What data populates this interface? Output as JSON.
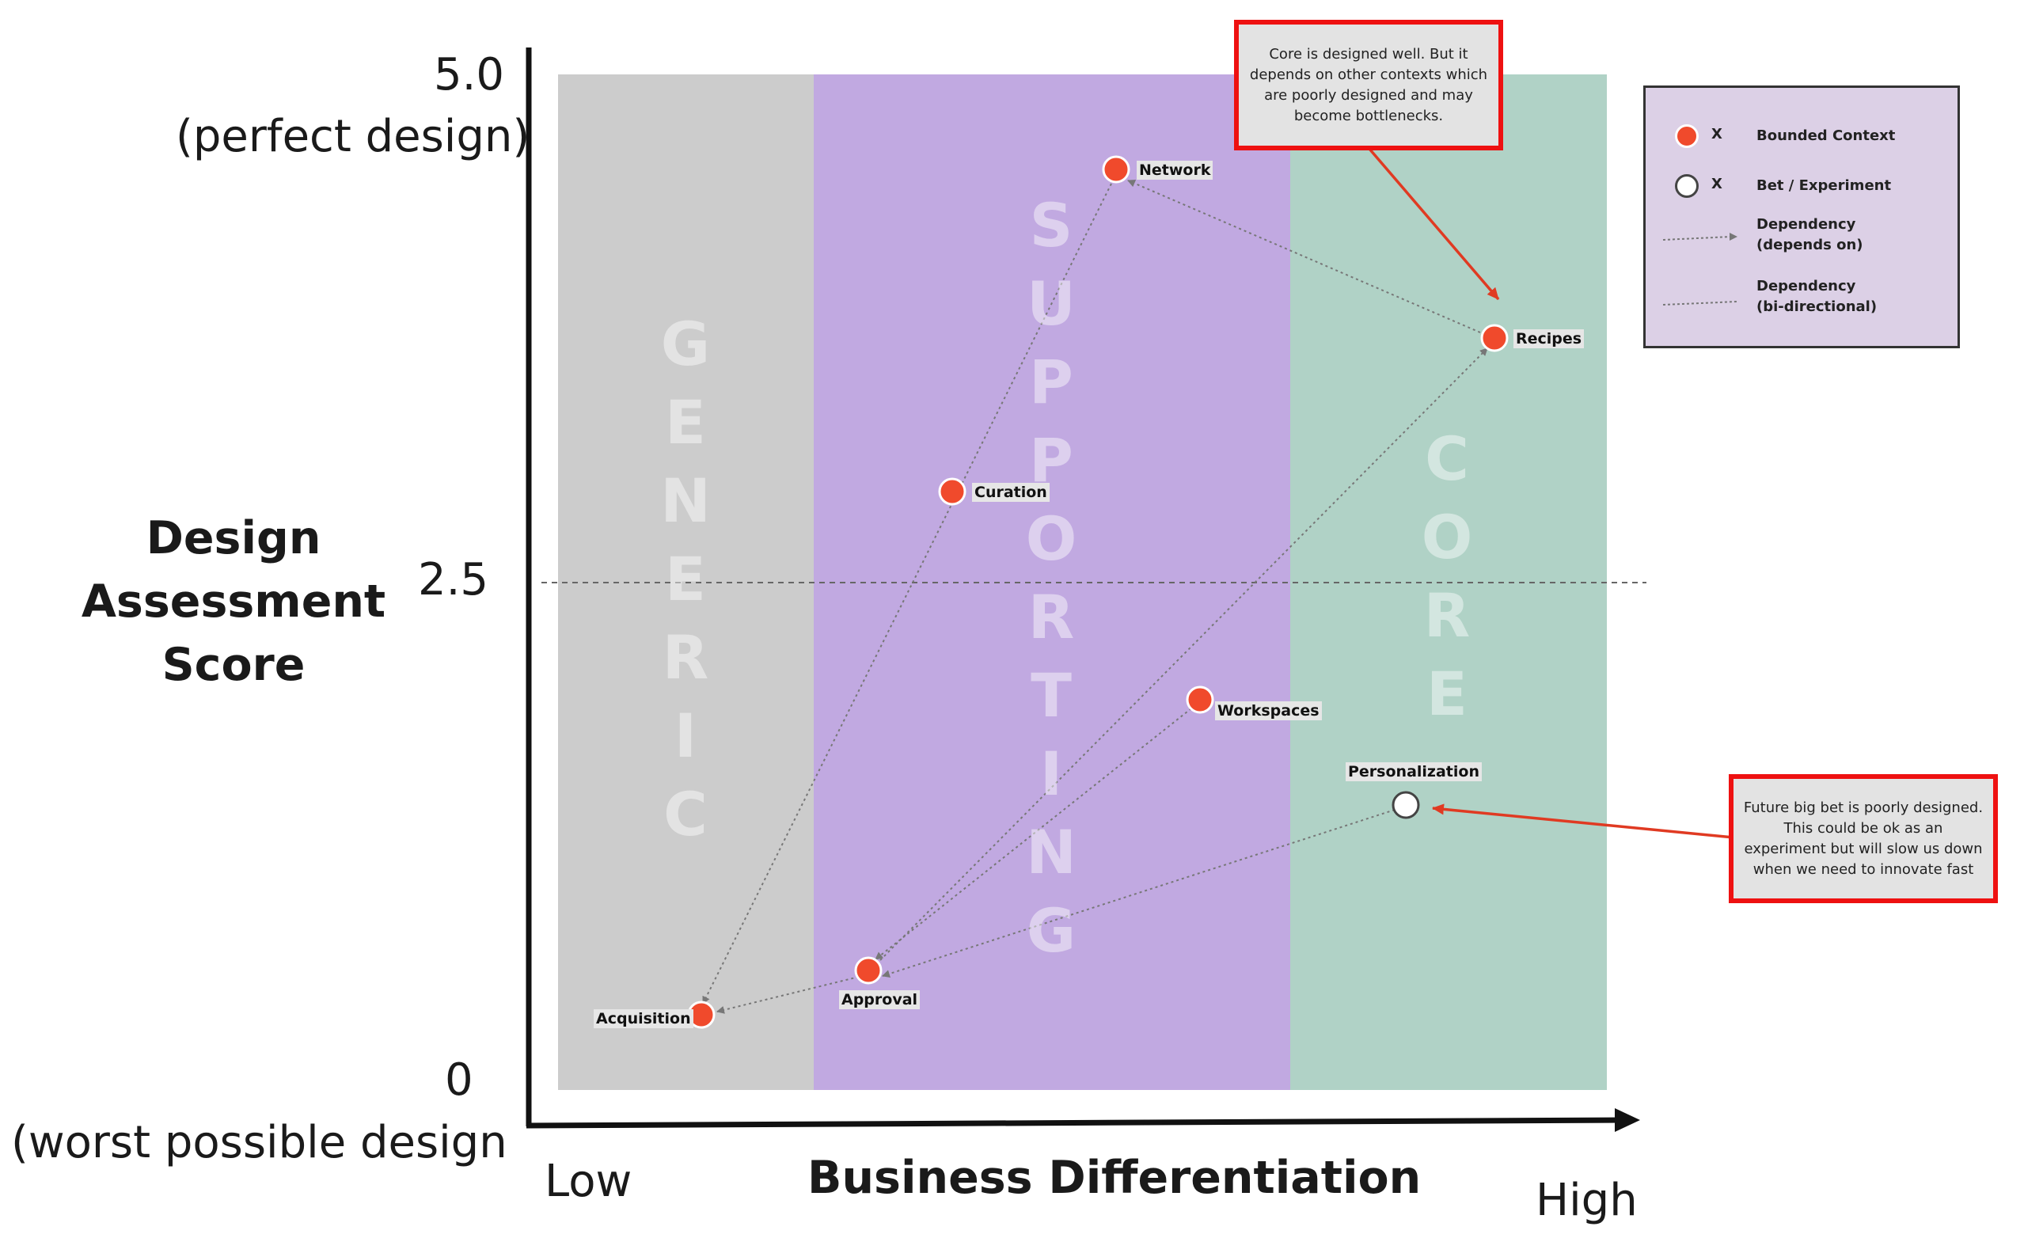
{
  "y_axis": {
    "title": "Design Assessment Score",
    "top_value": "5.0",
    "top_caption": "(perfect design)",
    "mid_value": "2.5",
    "bottom_value": "0",
    "bottom_caption": "(worst possible design"
  },
  "x_axis": {
    "title": "Business Differentiation",
    "low": "Low",
    "high": "High"
  },
  "zones": [
    {
      "name": "GENERIC",
      "color": "#cccccc"
    },
    {
      "name": "SUPPORTING",
      "color": "#c1a9e1"
    },
    {
      "name": "CORE",
      "color": "#b0d2c6"
    }
  ],
  "nodes": [
    {
      "id": "network",
      "label": "Network",
      "type": "bounded-context"
    },
    {
      "id": "recipes",
      "label": "Recipes",
      "type": "bounded-context"
    },
    {
      "id": "curation",
      "label": "Curation",
      "type": "bounded-context"
    },
    {
      "id": "workspaces",
      "label": "Workspaces",
      "type": "bounded-context"
    },
    {
      "id": "personalization",
      "label": "Personalization",
      "type": "bet-experiment"
    },
    {
      "id": "approval",
      "label": "Approval",
      "type": "bounded-context"
    },
    {
      "id": "acquisition",
      "label": "Acquisition",
      "type": "bounded-context"
    }
  ],
  "dependencies": [
    {
      "from": "recipes",
      "to": "network"
    },
    {
      "from": "network",
      "to": "acquisition"
    },
    {
      "from": "approval",
      "to": "recipes"
    },
    {
      "from": "workspaces",
      "to": "approval"
    },
    {
      "from": "personalization",
      "to": "approval"
    },
    {
      "from": "approval",
      "to": "acquisition"
    }
  ],
  "notes": {
    "core": "Core is designed well. But it depends on other contexts which are poorly designed and may become bottlenecks.",
    "bet": "Future big bet is poorly designed. This could be ok as an experiment but will slow us down when we need to innovate fast"
  },
  "legend": {
    "bounded_context_x": "X",
    "bounded_context": "Bounded Context",
    "bet_x": "X",
    "bet": "Bet / Experiment",
    "dep_depends_1": "Dependency",
    "dep_depends_2": "(depends on)",
    "dep_bidir_1": "Dependency",
    "dep_bidir_2": "(bi-directional)"
  },
  "colors": {
    "bounded_context": "#f04a2c",
    "bet": "#ffffff",
    "note_border": "#ee1111",
    "arrow": "#e03a22"
  }
}
